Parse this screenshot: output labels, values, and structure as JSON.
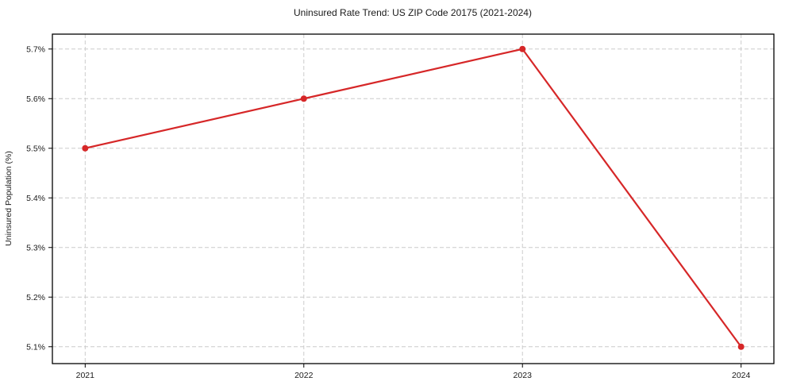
{
  "chart_data": {
    "type": "line",
    "title": "Uninsured Rate Trend: US ZIP Code 20175 (2021-2024)",
    "xlabel": "",
    "ylabel": "Uninsured Population (%)",
    "x": [
      2021,
      2022,
      2023,
      2024
    ],
    "x_tick_labels": [
      "2021",
      "2022",
      "2023",
      "2024"
    ],
    "series": [
      {
        "name": "Uninsured Population (%)",
        "values": [
          5.5,
          5.6,
          5.7,
          5.1
        ]
      }
    ],
    "y_ticks": [
      5.1,
      5.2,
      5.3,
      5.4,
      5.5,
      5.6,
      5.7
    ],
    "y_tick_labels": [
      "5.1%",
      "5.2%",
      "5.3%",
      "5.4%",
      "5.5%",
      "5.6%",
      "5.7%"
    ],
    "xlim": [
      2020.85,
      2024.15
    ],
    "ylim": [
      5.066,
      5.73
    ],
    "grid": true,
    "grid_style": "dashed",
    "legend": "none",
    "line_color": "#d62728",
    "marker": "circle",
    "marker_radius": 4
  }
}
